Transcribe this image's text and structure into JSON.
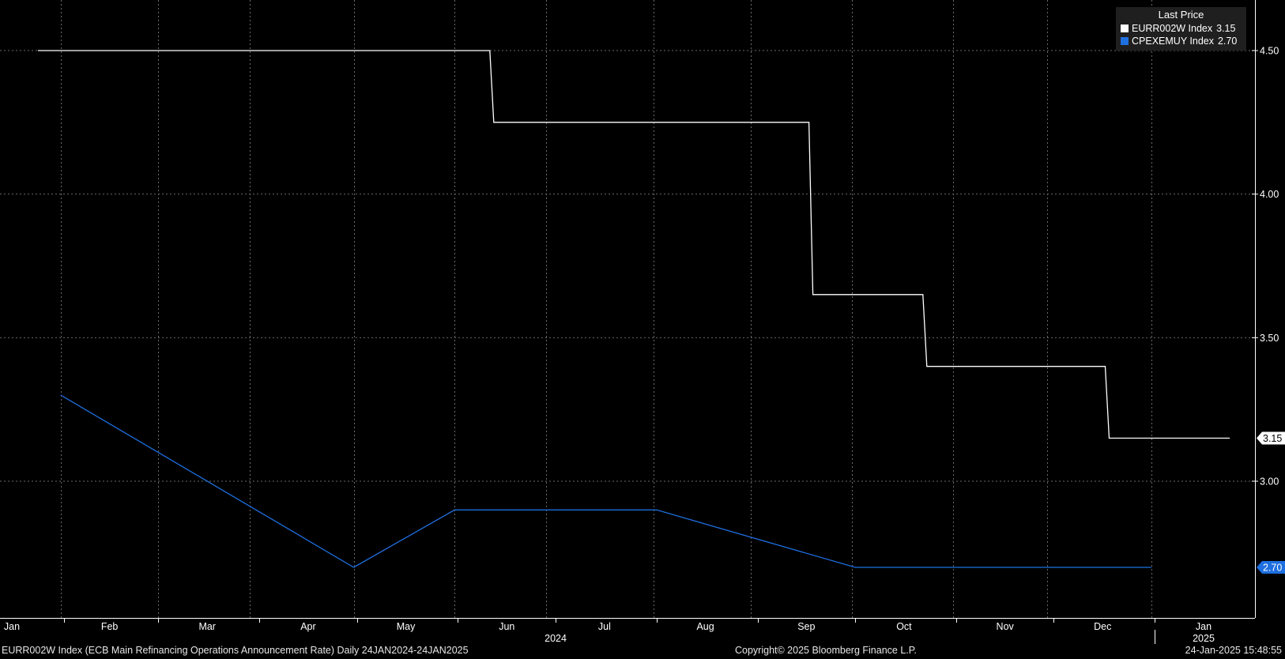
{
  "chart_data": {
    "type": "line",
    "legend": {
      "title": "Last Price",
      "placement": "top-right"
    },
    "x_range": [
      "2024-01-24",
      "2025-01-24"
    ],
    "ylim": [
      2.5,
      4.7
    ],
    "y_ticks": [
      3.0,
      3.5,
      4.0,
      4.5
    ],
    "y_tick_labels": [
      "3.00",
      "3.50",
      "4.00",
      "4.50"
    ],
    "x_month_labels": [
      {
        "label": "Jan",
        "date": "2024-01-16"
      },
      {
        "label": "Feb",
        "date": "2024-02-15"
      },
      {
        "label": "Mar",
        "date": "2024-03-16"
      },
      {
        "label": "Apr",
        "date": "2024-04-16"
      },
      {
        "label": "May",
        "date": "2024-05-16"
      },
      {
        "label": "Jun",
        "date": "2024-06-16"
      },
      {
        "label": "Jul",
        "date": "2024-07-16"
      },
      {
        "label": "Aug",
        "date": "2024-08-16"
      },
      {
        "label": "Sep",
        "date": "2024-09-16"
      },
      {
        "label": "Oct",
        "date": "2024-10-16"
      },
      {
        "label": "Nov",
        "date": "2024-11-16"
      },
      {
        "label": "Dec",
        "date": "2024-12-16"
      },
      {
        "label": "Jan",
        "date": "2025-01-16"
      }
    ],
    "x_year_labels": [
      {
        "label": "2024",
        "date": "2024-07-01"
      },
      {
        "label": "2025",
        "date": "2025-01-16"
      }
    ],
    "x_month_boundaries": [
      "2024-02-01",
      "2024-03-01",
      "2024-04-01",
      "2024-05-01",
      "2024-06-01",
      "2024-07-01",
      "2024-08-01",
      "2024-09-01",
      "2024-10-01",
      "2024-11-01",
      "2024-12-01",
      "2025-01-01"
    ],
    "x_gridlines": [
      "2024-01-31",
      "2024-03-01",
      "2024-03-29",
      "2024-04-30",
      "2024-05-31",
      "2024-06-28",
      "2024-07-31",
      "2024-08-30",
      "2024-09-30",
      "2024-10-31",
      "2024-11-29",
      "2024-12-31"
    ],
    "grid": true,
    "series": [
      {
        "name": "EURR002W Index",
        "last_value": 3.15,
        "last_label": "3.15",
        "color": "#ffffff",
        "step": true,
        "x": [
          "2024-01-24",
          "2024-06-12",
          "2024-09-18",
          "2024-10-23",
          "2024-12-18",
          "2025-01-24"
        ],
        "y": [
          4.5,
          4.25,
          3.65,
          3.4,
          3.15,
          3.15
        ]
      },
      {
        "name": "CPEXEMUY Index",
        "last_value": 2.7,
        "last_label": "2.70",
        "color": "#1e6fe0",
        "step": false,
        "x": [
          "2024-01-31",
          "2024-04-30",
          "2024-05-31",
          "2024-08-01",
          "2024-10-01",
          "2024-12-31"
        ],
        "y": [
          3.3,
          2.7,
          2.9,
          2.9,
          2.7,
          2.7
        ]
      }
    ]
  },
  "legend_entries": [
    {
      "name": "EURR002W Index",
      "value": "3.15",
      "color": "#ffffff"
    },
    {
      "name": "CPEXEMUY Index",
      "value": "2.70",
      "color": "#1e6fe0"
    }
  ],
  "footer": {
    "description": "EURR002W Index (ECB Main Refinancing Operations Announcement Rate)  Daily 24JAN2024-24JAN2025",
    "copyright": "Copyright© 2025 Bloomberg Finance L.P.",
    "timestamp": "24-Jan-2025 15:48:55"
  },
  "colors": {
    "background": "#000000",
    "grid": "#6a6a6a",
    "axis": "#ffffff",
    "legend_bg": "#1f1f1f"
  }
}
